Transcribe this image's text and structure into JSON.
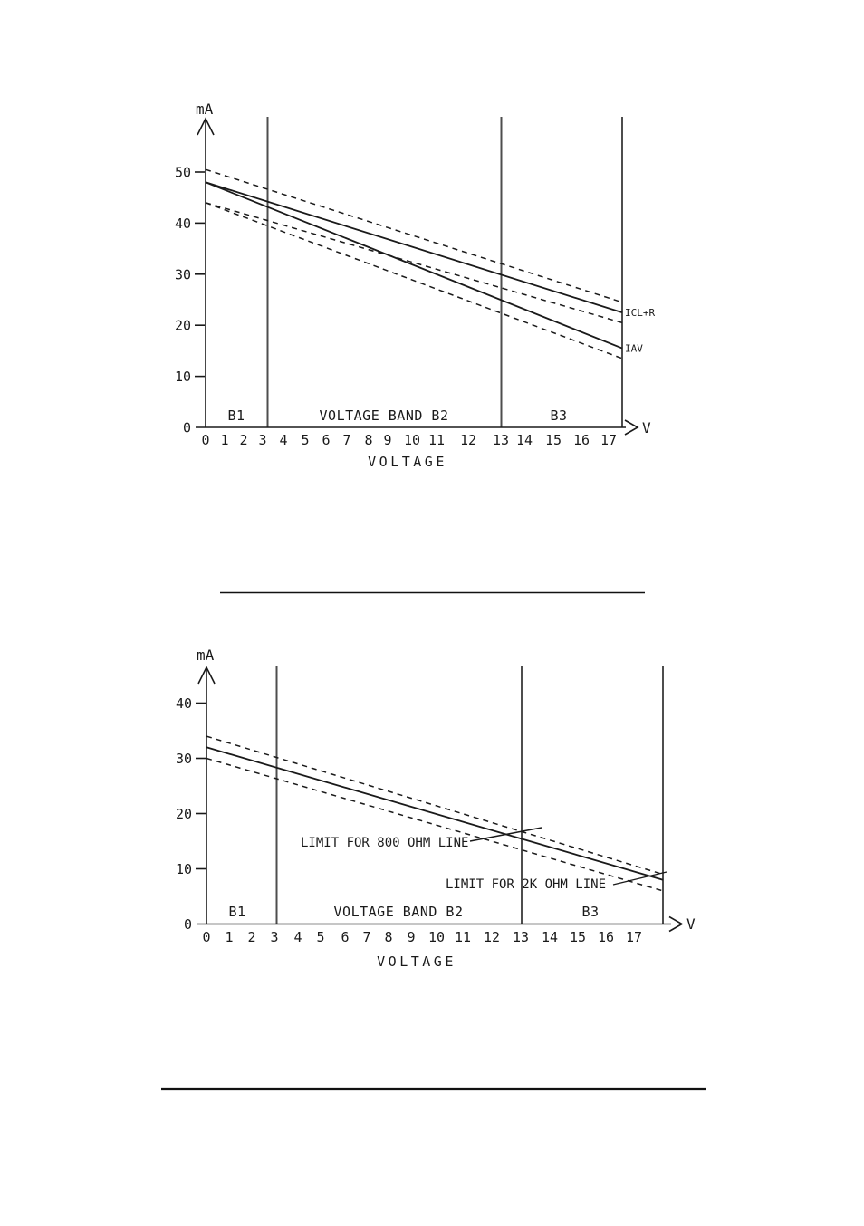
{
  "page": {
    "background": "#ffffff",
    "ink_color": "#1a1a1a",
    "band_line_color": "#4d4d4d"
  },
  "chart_data": [
    {
      "type": "line",
      "title": "",
      "xlabel": "VOLTAGE",
      "ylabel": "mA",
      "x_axis_arrow_label": "V",
      "xlim": [
        0,
        17.5
      ],
      "ylim": [
        0,
        57
      ],
      "grid": false,
      "x_ticks": [
        "0",
        "1",
        "2",
        "3",
        "4",
        "5",
        "6",
        "7",
        "8",
        "9",
        "10",
        "11",
        "12",
        "13",
        "14",
        "15",
        "16",
        "17"
      ],
      "y_ticks": [
        "0",
        "10",
        "20",
        "30",
        "40",
        "50"
      ],
      "voltage_bands": [
        {
          "label": "B1",
          "from_v": 0,
          "to_v": 3
        },
        {
          "label": "VOLTAGE BAND B2",
          "from_v": 3,
          "to_v": 13
        },
        {
          "label": "B3",
          "from_v": 13,
          "to_v": 17.5
        }
      ],
      "series": [
        {
          "name": "upper-tolerance",
          "style": "dashed",
          "label": "",
          "x": [
            0,
            17.5
          ],
          "y_ma": [
            50.5,
            24.5
          ]
        },
        {
          "name": "ICL+R",
          "style": "solid",
          "label": "ICL+R",
          "x": [
            0,
            17.5
          ],
          "y_ma": [
            48,
            22.5
          ]
        },
        {
          "name": "middle-tolerance",
          "style": "dashed",
          "label": "",
          "x": [
            0,
            17.5
          ],
          "y_ma": [
            44,
            20.5
          ]
        },
        {
          "name": "IAV",
          "style": "solid",
          "label": "IAV",
          "x": [
            0,
            17.5
          ],
          "y_ma": [
            48,
            15.5
          ]
        },
        {
          "name": "lower-tolerance",
          "style": "dashed",
          "label": "",
          "x": [
            0,
            17.5
          ],
          "y_ma": [
            44,
            13.5
          ]
        }
      ],
      "annotations": []
    },
    {
      "type": "line",
      "title": "",
      "xlabel": "VOLTAGE",
      "ylabel": "mA",
      "x_axis_arrow_label": "V",
      "xlim": [
        0,
        17.5
      ],
      "ylim": [
        0,
        46
      ],
      "grid": false,
      "x_ticks": [
        "0",
        "1",
        "2",
        "3",
        "4",
        "5",
        "6",
        "7",
        "8",
        "9",
        "10",
        "11",
        "12",
        "13",
        "14",
        "15",
        "16",
        "17"
      ],
      "y_ticks": [
        "0",
        "10",
        "20",
        "30",
        "40"
      ],
      "voltage_bands": [
        {
          "label": "B1",
          "from_v": 0,
          "to_v": 3
        },
        {
          "label": "VOLTAGE BAND B2",
          "from_v": 3,
          "to_v": 13
        },
        {
          "label": "B3",
          "from_v": 13,
          "to_v": 17.5
        }
      ],
      "series": [
        {
          "name": "upper-tolerance",
          "style": "dashed",
          "label": "",
          "x": [
            0,
            17.5
          ],
          "y_ma": [
            34,
            9
          ]
        },
        {
          "name": "line-current-limit",
          "style": "solid",
          "label": "",
          "x": [
            0,
            17.5
          ],
          "y_ma": [
            32,
            8
          ]
        },
        {
          "name": "lower-tolerance",
          "style": "dashed",
          "label": "",
          "x": [
            0,
            17.5
          ],
          "y_ma": [
            30,
            6
          ]
        }
      ],
      "annotations": [
        {
          "text": "LIMIT FOR 800 OHM LINE",
          "points_to_v": 13.5
        },
        {
          "text": "LIMIT FOR 2K OHM LINE",
          "points_to_v": 17.3
        }
      ]
    }
  ]
}
